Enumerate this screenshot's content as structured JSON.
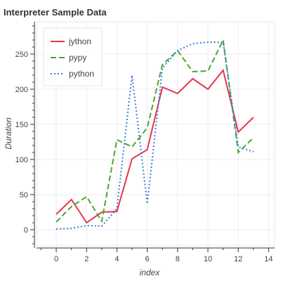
{
  "chart_data": {
    "type": "line",
    "title": "Interpreter Sample Data",
    "xlabel": "index",
    "ylabel": "Duration",
    "x": [
      0,
      1,
      2,
      3,
      4,
      5,
      6,
      7,
      8,
      9,
      10,
      11,
      12,
      13
    ],
    "xlim": [
      -1.3,
      14.4
    ],
    "ylim": [
      -23,
      296
    ],
    "xticks": [
      0,
      2,
      4,
      6,
      8,
      10,
      12,
      14
    ],
    "yticks": [
      0,
      50,
      100,
      150,
      200,
      250
    ],
    "grid": true,
    "legend_position": "top-left",
    "series": [
      {
        "name": "jython",
        "color": "#e8344f",
        "dash": "solid",
        "values": [
          22,
          43,
          10,
          25,
          26,
          101,
          114,
          203,
          194,
          215,
          200,
          227,
          139,
          160
        ]
      },
      {
        "name": "pypy",
        "color": "#4aa832",
        "dash": "dashed",
        "values": [
          11,
          33,
          47,
          12,
          128,
          118,
          145,
          235,
          255,
          225,
          226,
          270,
          110,
          131
        ]
      },
      {
        "name": "python",
        "color": "#3b7ae0",
        "dash": "dotted",
        "values": [
          1,
          2,
          6,
          5,
          30,
          220,
          37,
          230,
          255,
          265,
          267,
          267,
          118,
          111
        ]
      }
    ]
  }
}
